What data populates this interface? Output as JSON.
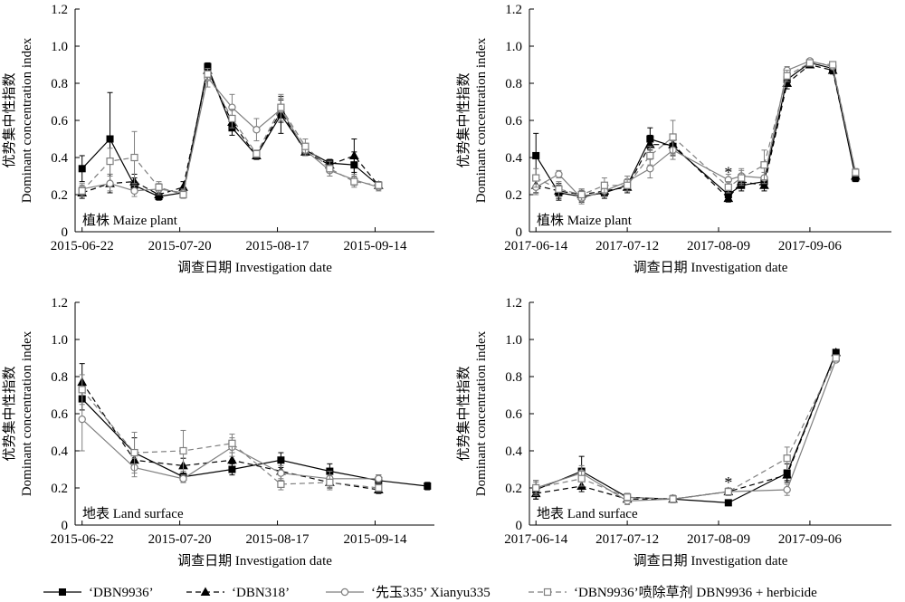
{
  "chart_data": [
    {
      "type": "line",
      "panel_label": "植株 Maize plant",
      "xlabel": "调查日期 Investigation date",
      "ylabel_cn": "优势集中性指数",
      "ylabel_en": "Dominant concentration index",
      "ylim": [
        0,
        1.2
      ],
      "yticks": [
        "0",
        "0.2",
        "0.4",
        "0.6",
        "0.8",
        "1.0",
        "1.2"
      ],
      "xlim": [
        "2015-06-20",
        "2015-10-01"
      ],
      "xtick_labels": [
        "2015-06-22",
        "2015-07-20",
        "2015-08-17",
        "2015-09-14"
      ],
      "xtick_values": [
        "2015-06-22",
        "2015-07-20",
        "2015-08-17",
        "2015-09-14"
      ],
      "x": [
        "2015-06-22",
        "2015-06-30",
        "2015-07-07",
        "2015-07-14",
        "2015-07-21",
        "2015-07-28",
        "2015-08-04",
        "2015-08-11",
        "2015-08-18",
        "2015-08-25",
        "2015-09-01",
        "2015-09-08",
        "2015-09-15"
      ],
      "series": [
        {
          "key": "dbn9936",
          "values": [
            0.34,
            0.5,
            0.25,
            0.19,
            0.21,
            0.89,
            0.56,
            0.41,
            0.63,
            0.44,
            0.37,
            0.36,
            0.25
          ],
          "errors": [
            0.07,
            0.25,
            0.04,
            0.02,
            0.02,
            0.02,
            0.04,
            0.02,
            0.1,
            0.03,
            0.02,
            0.07,
            0.02
          ]
        },
        {
          "key": "dbn318",
          "values": [
            0.21,
            0.26,
            0.27,
            0.2,
            0.24,
            0.87,
            0.59,
            0.41,
            0.65,
            0.43,
            0.36,
            0.41,
            0.25
          ],
          "errors": [
            0.03,
            0.05,
            0.04,
            0.02,
            0.03,
            0.02,
            0.03,
            0.02,
            0.06,
            0.02,
            0.02,
            0.09,
            0.02
          ]
        },
        {
          "key": "xianyu335",
          "values": [
            0.23,
            0.26,
            0.22,
            0.23,
            0.21,
            0.83,
            0.67,
            0.55,
            0.66,
            0.44,
            0.33,
            0.28,
            0.24
          ],
          "errors": [
            0.03,
            0.04,
            0.03,
            0.03,
            0.02,
            0.05,
            0.07,
            0.06,
            0.06,
            0.03,
            0.03,
            0.03,
            0.02
          ]
        },
        {
          "key": "dbn9936_herbicide",
          "values": [
            0.22,
            0.38,
            0.4,
            0.24,
            0.2,
            0.85,
            0.61,
            0.42,
            0.67,
            0.46,
            0.34,
            0.27,
            0.25
          ],
          "errors": [
            0.03,
            0.07,
            0.14,
            0.03,
            0.02,
            0.03,
            0.05,
            0.02,
            0.07,
            0.04,
            0.04,
            0.03,
            0.02
          ]
        }
      ]
    },
    {
      "type": "line",
      "panel_label": "植株 Maize plant",
      "xlabel": "调查日期 Investigation date",
      "ylabel_cn": "优势集中性指数",
      "ylabel_en": "Dominant concentration index",
      "ylim": [
        0,
        1.2
      ],
      "yticks": [
        "0",
        "0.2",
        "0.4",
        "0.6",
        "0.8",
        "1.0",
        "1.2"
      ],
      "xlim": [
        "2017-06-12",
        "2017-10-01"
      ],
      "xtick_labels": [
        "2017-06-14",
        "2017-07-12",
        "2017-08-09",
        "2017-09-06"
      ],
      "xtick_values": [
        "2017-06-14",
        "2017-07-12",
        "2017-08-09",
        "2017-09-06"
      ],
      "annotations": [
        {
          "text": "*",
          "x": "2017-08-12",
          "y": 0.33
        }
      ],
      "x": [
        "2017-06-14",
        "2017-06-21",
        "2017-06-28",
        "2017-07-05",
        "2017-07-12",
        "2017-07-19",
        "2017-07-26",
        "2017-08-02",
        "2017-08-12",
        "2017-08-16",
        "2017-08-23",
        "2017-08-30",
        "2017-09-06",
        "2017-09-13",
        "2017-09-20",
        "2017-09-27"
      ],
      "series": [
        {
          "key": "dbn9936",
          "values": [
            0.41,
            0.21,
            0.19,
            0.21,
            0.25,
            0.5,
            0.46,
            null,
            0.2,
            0.25,
            0.27,
            0.82,
            0.91,
            0.88,
            0.29,
            null
          ],
          "errors": [
            0.12,
            0.04,
            0.03,
            0.03,
            0.03,
            0.06,
            0.05,
            null,
            0.03,
            0.03,
            0.03,
            0.03,
            0.01,
            0.02,
            0.02,
            null
          ]
        },
        {
          "key": "dbn318",
          "values": [
            0.25,
            0.22,
            0.2,
            0.22,
            0.24,
            0.47,
            0.47,
            null,
            0.18,
            0.27,
            0.25,
            0.8,
            0.9,
            0.87,
            0.3,
            null
          ],
          "errors": [
            0.04,
            0.04,
            0.03,
            0.03,
            0.03,
            0.05,
            0.05,
            null,
            0.02,
            0.03,
            0.03,
            0.03,
            0.01,
            0.02,
            0.02,
            null
          ]
        },
        {
          "key": "xianyu335",
          "values": [
            0.24,
            0.31,
            0.18,
            0.22,
            0.27,
            0.34,
            0.44,
            null,
            0.28,
            0.3,
            0.29,
            0.87,
            0.92,
            0.89,
            0.32,
            null
          ],
          "errors": [
            0.04,
            0.02,
            0.03,
            0.03,
            0.03,
            0.05,
            0.05,
            null,
            0.03,
            0.04,
            0.03,
            0.02,
            0.01,
            0.01,
            0.02,
            null
          ]
        },
        {
          "key": "dbn9936_herbicide",
          "values": [
            0.29,
            0.23,
            0.2,
            0.25,
            0.25,
            0.41,
            0.51,
            null,
            0.24,
            0.29,
            0.36,
            0.84,
            0.91,
            0.9,
            0.32,
            null
          ],
          "errors": [
            0.05,
            0.04,
            0.03,
            0.04,
            0.03,
            0.05,
            0.09,
            null,
            0.03,
            0.04,
            0.08,
            0.03,
            0.01,
            0.01,
            0.02,
            null
          ]
        }
      ]
    },
    {
      "type": "line",
      "panel_label": "地表 Land surface",
      "xlabel": "调查日期 Investigation date",
      "ylabel_cn": "优势集中性指数",
      "ylabel_en": "Dominant concentration index",
      "ylim": [
        0,
        1.2
      ],
      "yticks": [
        "0",
        "0.2",
        "0.4",
        "0.6",
        "0.8",
        "1.0",
        "1.2"
      ],
      "xlim": [
        "2015-06-20",
        "2015-10-01"
      ],
      "xtick_labels": [
        "2015-06-22",
        "2015-07-20",
        "2015-08-17",
        "2015-09-14"
      ],
      "xtick_values": [
        "2015-06-22",
        "2015-07-20",
        "2015-08-17",
        "2015-09-14"
      ],
      "x": [
        "2015-06-22",
        "2015-07-07",
        "2015-07-21",
        "2015-08-04",
        "2015-08-18",
        "2015-09-01",
        "2015-09-15",
        "2015-09-29"
      ],
      "series": [
        {
          "key": "dbn9936",
          "values": [
            0.68,
            0.39,
            0.26,
            0.3,
            0.35,
            0.29,
            0.24,
            0.21
          ],
          "errors": [
            0.06,
            0.08,
            0.03,
            0.03,
            0.04,
            0.04,
            0.03,
            0.02
          ]
        },
        {
          "key": "dbn318",
          "values": [
            0.77,
            0.35,
            0.32,
            0.35,
            0.29,
            0.23,
            0.19,
            null
          ],
          "errors": [
            0.1,
            0.05,
            0.04,
            0.04,
            0.05,
            0.03,
            0.02,
            null
          ]
        },
        {
          "key": "xianyu335",
          "values": [
            0.57,
            0.31,
            0.25,
            0.42,
            0.28,
            0.25,
            0.25,
            null
          ],
          "errors": [
            0.17,
            0.05,
            0.02,
            0.05,
            0.04,
            0.04,
            0.02,
            null
          ]
        },
        {
          "key": "dbn9936_herbicide",
          "values": [
            0.73,
            0.39,
            0.4,
            0.44,
            0.22,
            0.23,
            0.2,
            null
          ],
          "errors": [
            0.08,
            0.11,
            0.11,
            0.05,
            0.03,
            0.04,
            0.02,
            null
          ]
        }
      ]
    },
    {
      "type": "line",
      "panel_label": "地表 Land surface",
      "xlabel": "调查日期 Investigation date",
      "ylabel_cn": "优势集中性指数",
      "ylabel_en": "Dominant concentration index",
      "ylim": [
        0,
        1.2
      ],
      "yticks": [
        "0",
        "0.2",
        "0.4",
        "0.6",
        "0.8",
        "1.0",
        "1.2"
      ],
      "xlim": [
        "2017-06-12",
        "2017-10-01"
      ],
      "xtick_labels": [
        "2017-06-14",
        "2017-07-12",
        "2017-08-09",
        "2017-09-06"
      ],
      "xtick_values": [
        "2017-06-14",
        "2017-07-12",
        "2017-08-09",
        "2017-09-06"
      ],
      "annotations": [
        {
          "text": "*",
          "x": "2017-08-12",
          "y": 0.24
        }
      ],
      "x": [
        "2017-06-14",
        "2017-06-28",
        "2017-07-12",
        "2017-07-26",
        "2017-08-12",
        "2017-08-30",
        "2017-09-14"
      ],
      "series": [
        {
          "key": "dbn9936",
          "values": [
            0.19,
            0.29,
            0.15,
            0.14,
            0.12,
            0.28,
            0.93
          ],
          "errors": [
            0.05,
            0.08,
            0.02,
            0.02,
            0.01,
            0.05,
            0.01
          ]
        },
        {
          "key": "dbn318",
          "values": [
            0.17,
            0.21,
            0.14,
            0.14,
            0.18,
            0.27,
            0.93
          ],
          "errors": [
            0.03,
            0.03,
            0.02,
            0.02,
            0.02,
            0.03,
            0.01
          ]
        },
        {
          "key": "xianyu335",
          "values": [
            0.2,
            0.28,
            0.13,
            0.14,
            0.18,
            0.19,
            0.89
          ],
          "errors": [
            0.03,
            0.04,
            0.02,
            0.02,
            0.02,
            0.03,
            0.01
          ]
        },
        {
          "key": "dbn9936_herbicide",
          "values": [
            0.2,
            0.25,
            0.15,
            0.14,
            0.18,
            0.36,
            0.9
          ],
          "errors": [
            0.04,
            0.04,
            0.02,
            0.02,
            0.02,
            0.06,
            0.01
          ]
        }
      ]
    }
  ],
  "legend": [
    {
      "key": "dbn9936",
      "label": "‘DBN9936’",
      "color": "#000000",
      "dash": "solid",
      "marker": "filled-square"
    },
    {
      "key": "dbn318",
      "label": "‘DBN318’",
      "color": "#000000",
      "dash": "dashed",
      "marker": "filled-triangle"
    },
    {
      "key": "xianyu335",
      "label": "‘先玉335’ Xianyu335",
      "color": "#7f7f7f",
      "dash": "solid",
      "marker": "open-circle"
    },
    {
      "key": "dbn9936_herbicide",
      "label": "‘DBN9936’喷除草剂 DBN9936 + herbicide",
      "color": "#7f7f7f",
      "dash": "dashed",
      "marker": "open-square"
    }
  ]
}
